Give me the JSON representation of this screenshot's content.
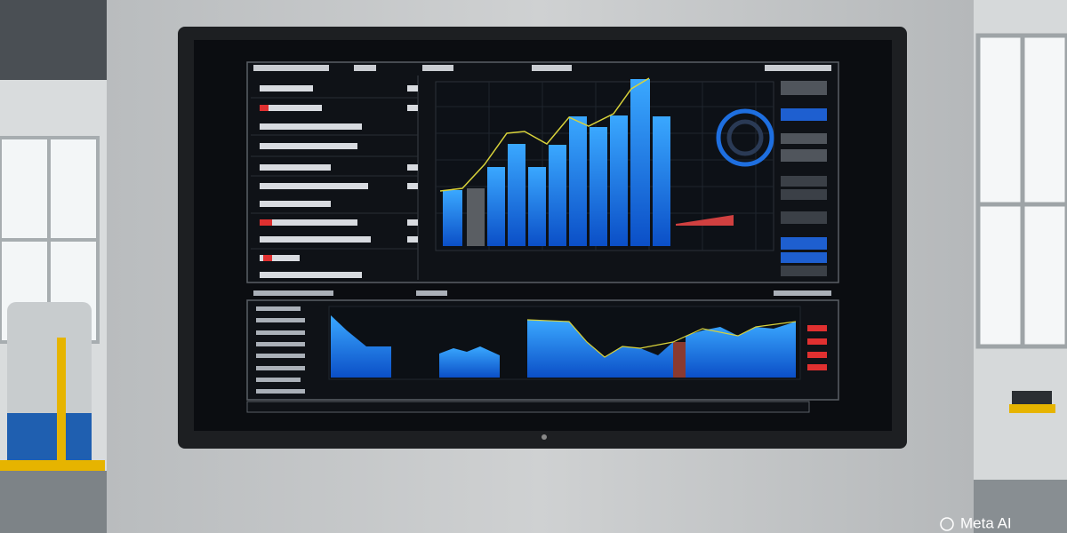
{
  "watermark": "Meta AI"
}
